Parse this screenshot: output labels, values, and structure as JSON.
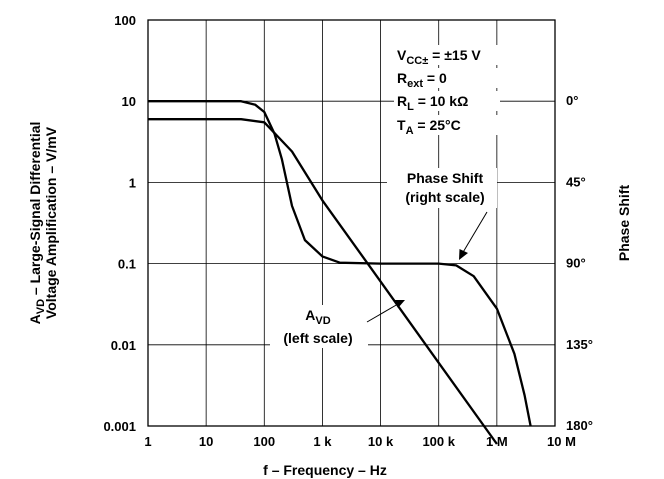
{
  "chart_data": {
    "type": "line",
    "xlabel": "f – Frequency – Hz",
    "ylabel_left": {
      "prefix": "A",
      "sub": "VD",
      "line1_rest": " – Large-Signal Differential",
      "line2": "Voltage Amplification – V/mV"
    },
    "ylabel_right": "Phase Shift",
    "x_scale": "log",
    "x_range": [
      1,
      10000000
    ],
    "x_ticks": [
      {
        "value": 1,
        "label": "1"
      },
      {
        "value": 10,
        "label": "10"
      },
      {
        "value": 100,
        "label": "100"
      },
      {
        "value": 1000,
        "label": "1 k"
      },
      {
        "value": 10000,
        "label": "10 k"
      },
      {
        "value": 100000,
        "label": "100 k"
      },
      {
        "value": 1000000,
        "label": "1 M"
      },
      {
        "value": 10000000,
        "label": "10 M"
      }
    ],
    "y_left_scale": "log",
    "y_left_range": [
      0.001,
      100
    ],
    "y_left_ticks": [
      {
        "value": 100,
        "label": "100"
      },
      {
        "value": 10,
        "label": "10"
      },
      {
        "value": 1,
        "label": "1"
      },
      {
        "value": 0.1,
        "label": "0.1"
      },
      {
        "value": 0.01,
        "label": "0.01"
      },
      {
        "value": 0.001,
        "label": "0.001"
      }
    ],
    "y_right_ticks": [
      {
        "value": 0,
        "label": "0°"
      },
      {
        "value": 45,
        "label": "45°"
      },
      {
        "value": 90,
        "label": "90°"
      },
      {
        "value": 135,
        "label": "135°"
      },
      {
        "value": 180,
        "label": "180°"
      }
    ],
    "grid": true,
    "series": [
      {
        "name": "AVD (left scale)",
        "scale": "left",
        "x": [
          1,
          10,
          40,
          100,
          300,
          1000,
          10000,
          100000,
          1000000
        ],
        "y": [
          6,
          6,
          6,
          5.5,
          2.4,
          0.6,
          0.06,
          0.006,
          0.0006
        ]
      },
      {
        "name": "Phase Shift (right scale)",
        "scale": "right",
        "x": [
          1,
          10,
          40,
          70,
          100,
          150,
          200,
          300,
          500,
          1000,
          2000,
          10000,
          100000,
          200000,
          400000,
          1000000,
          2000000,
          3000000,
          3800000
        ],
        "y": [
          0,
          0,
          0,
          2,
          6,
          18,
          32,
          58,
          77,
          86,
          89.5,
          90,
          90,
          91,
          97,
          115,
          140,
          163,
          180
        ]
      }
    ],
    "conditions": [
      {
        "main": "V",
        "sub": "CC±",
        "rest": " = ±15 V"
      },
      {
        "main": "R",
        "sub": "ext",
        "rest": " = 0"
      },
      {
        "main": "R",
        "sub": "L",
        "rest": " = 10 kΩ"
      },
      {
        "main": "T",
        "sub": "A",
        "rest": " = 25°C"
      }
    ],
    "annotations": {
      "phase": {
        "line1": "Phase Shift",
        "line2": "(right scale)"
      },
      "avd": {
        "main": "A",
        "sub": "VD",
        "line2": "(left scale)"
      }
    }
  }
}
